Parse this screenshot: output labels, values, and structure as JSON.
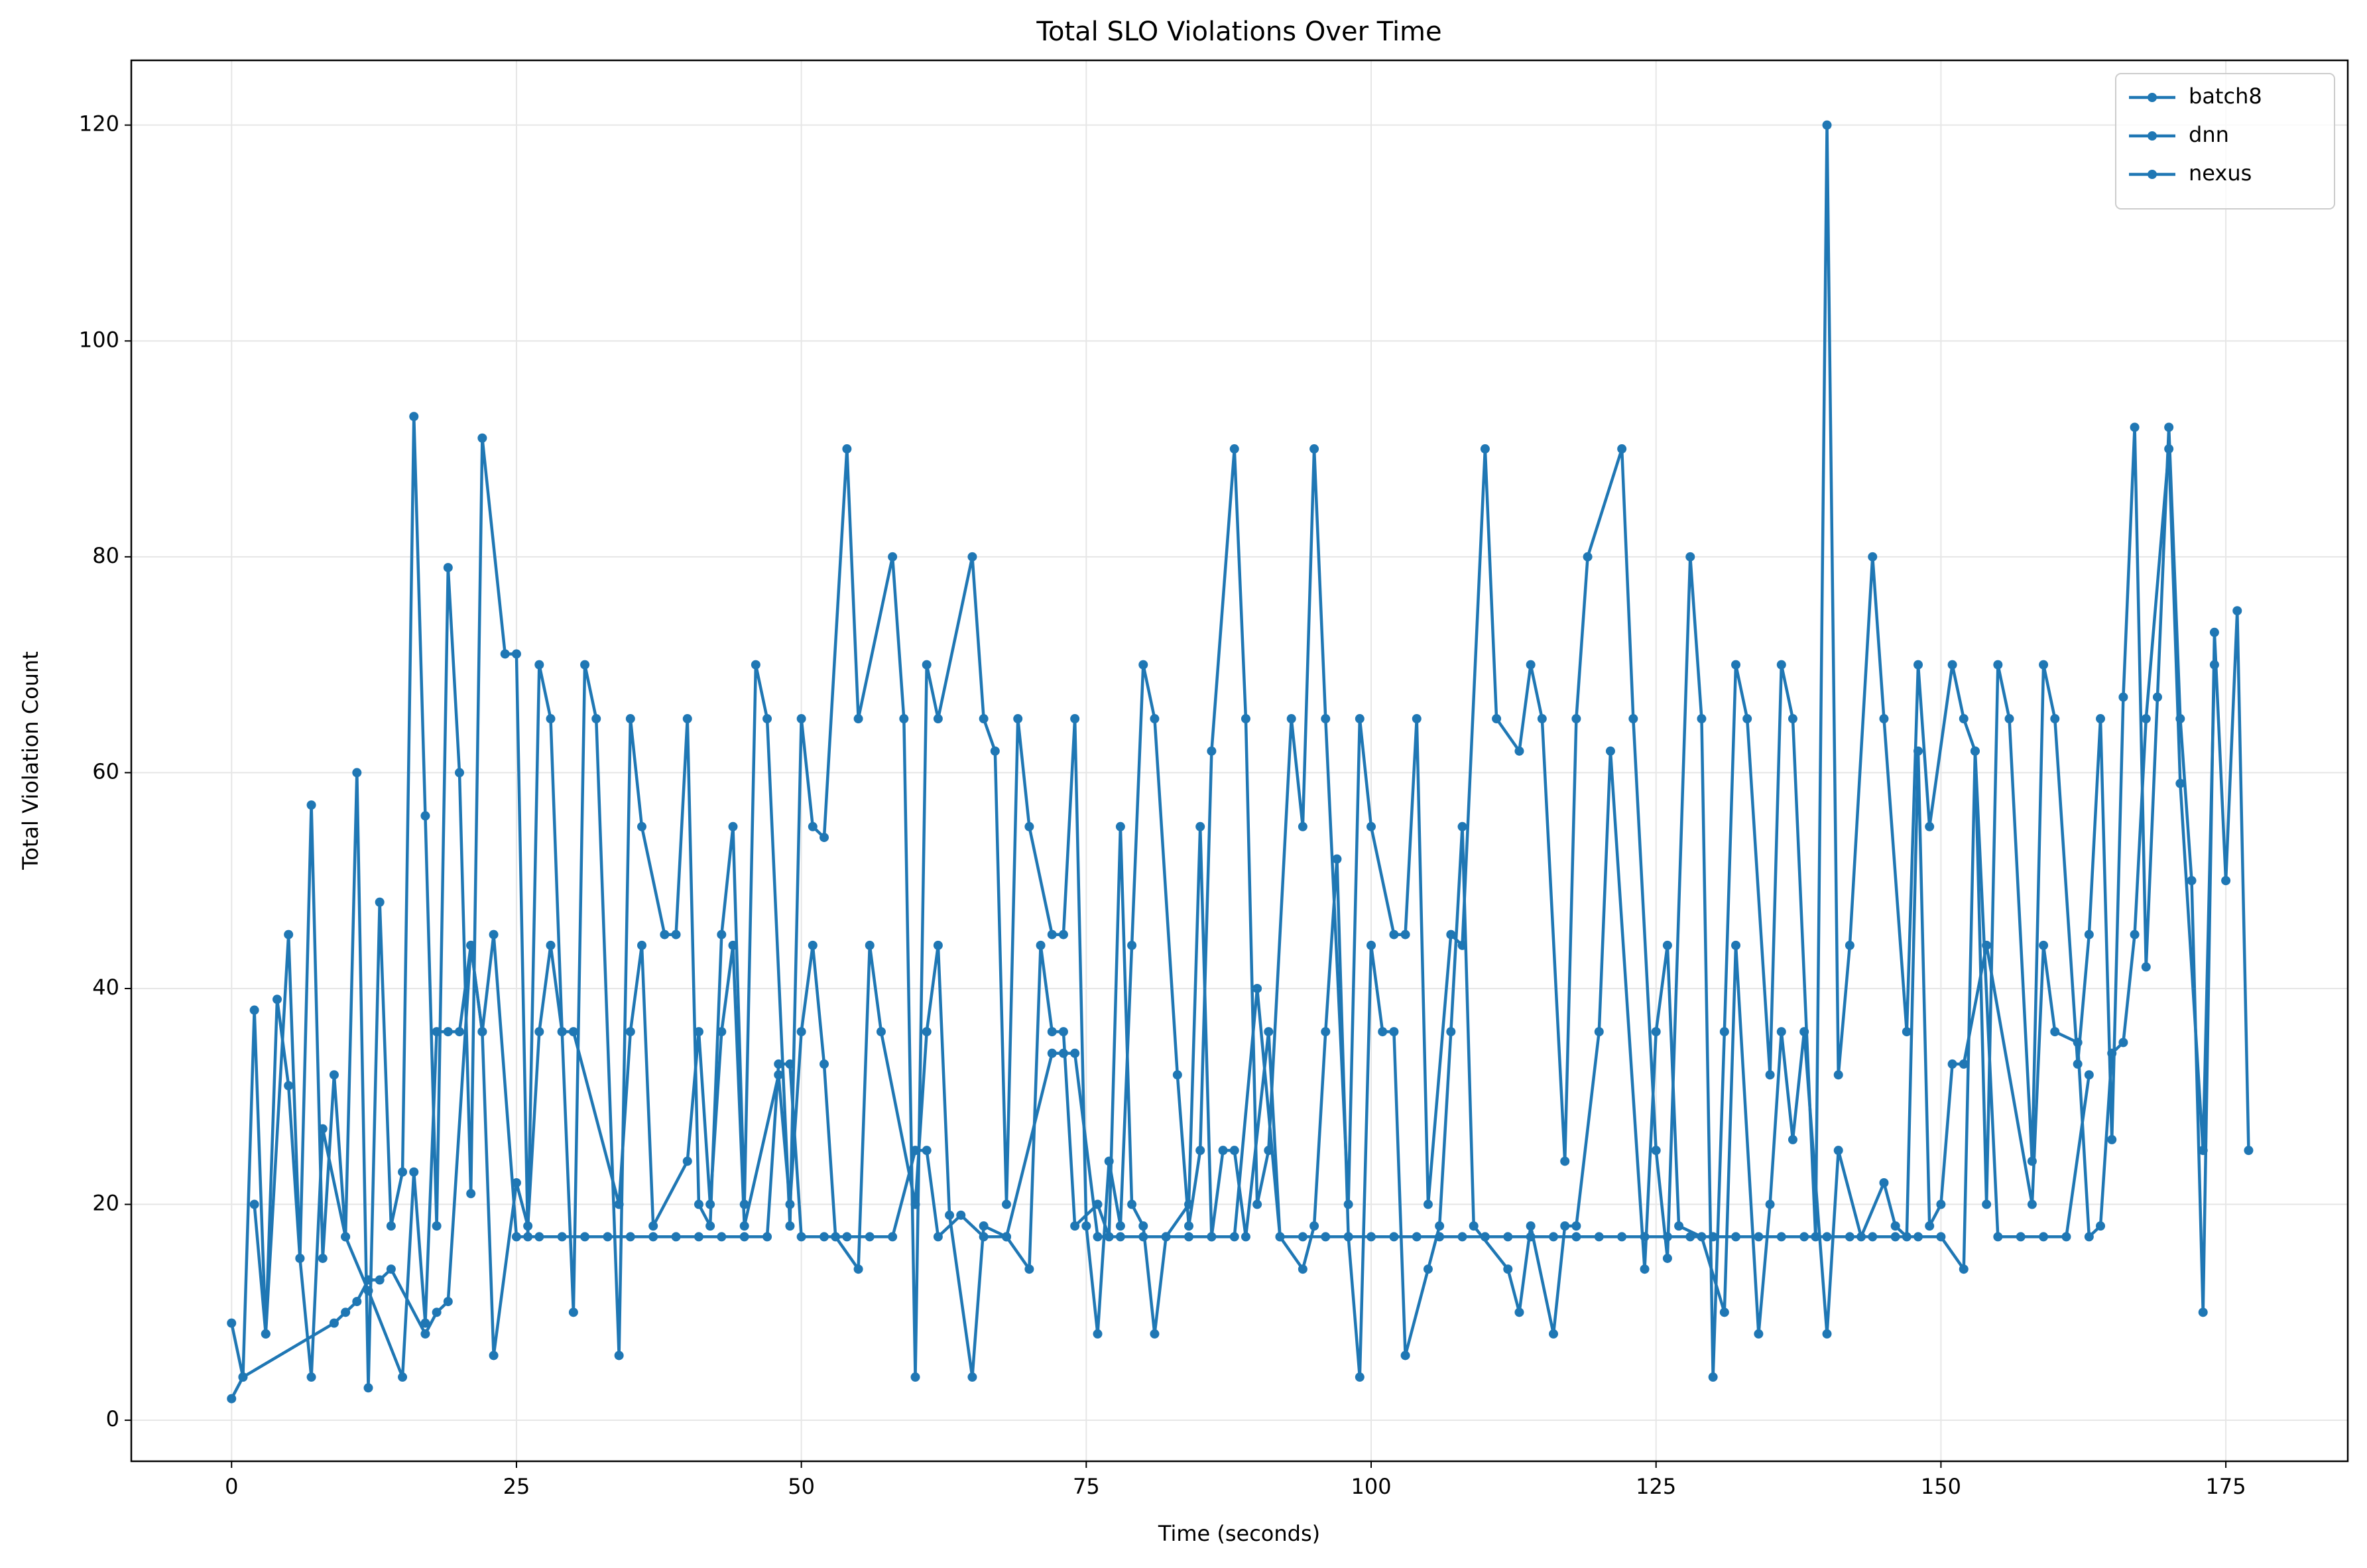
{
  "chart_data": {
    "type": "line",
    "title": "Total SLO Violations Over Time",
    "x_label": "Time (seconds)",
    "y_label": "Total Violation Count",
    "xlim": [
      -8.8,
      185.7
    ],
    "ylim": [
      -3.8,
      126
    ],
    "xticks": [
      0,
      25,
      50,
      75,
      100,
      125,
      150,
      175
    ],
    "yticks": [
      0,
      20,
      40,
      60,
      80,
      100,
      120
    ],
    "grid": true,
    "legend": "upper right",
    "series": [
      {
        "name": "batch8",
        "color": "#1f77b4",
        "x": [
          0,
          1,
          2,
          3,
          4,
          5,
          6,
          7,
          8,
          9,
          10,
          11,
          12,
          13,
          14,
          15,
          16,
          17,
          18,
          19,
          20,
          21,
          22,
          24,
          25,
          26,
          27,
          28,
          29,
          30,
          31,
          32,
          34,
          35,
          36,
          38,
          39,
          40,
          41,
          42,
          43,
          44,
          45,
          46,
          47,
          49,
          50,
          51,
          52,
          54,
          55,
          58,
          59,
          60,
          61,
          62,
          65,
          66,
          67,
          68,
          69,
          70,
          72,
          73,
          74,
          75,
          76,
          77,
          78,
          79,
          80,
          81,
          83,
          84,
          85,
          86,
          88,
          89,
          90,
          91,
          93,
          94,
          95,
          96,
          98,
          99,
          100,
          102,
          103,
          104,
          105,
          107,
          108,
          110,
          111,
          113,
          114,
          115,
          117,
          118,
          119,
          122,
          123,
          125,
          126,
          128,
          129,
          130,
          131,
          132,
          133,
          135,
          136,
          137,
          139,
          140,
          141,
          142,
          144,
          145,
          147,
          148,
          149,
          151,
          152,
          153,
          154,
          155,
          156,
          158,
          159,
          160,
          162,
          163,
          164,
          165,
          166,
          167,
          168,
          169,
          170,
          171,
          172,
          173,
          174,
          175,
          176,
          177
        ],
        "values": [
          9,
          4,
          38,
          8,
          39,
          31,
          15,
          57,
          15,
          32,
          17,
          60,
          3,
          48,
          18,
          23,
          93,
          56,
          18,
          79,
          60,
          21,
          91,
          71,
          71,
          17,
          70,
          65,
          36,
          10,
          70,
          65,
          6,
          65,
          55,
          45,
          45,
          65,
          20,
          18,
          45,
          55,
          20,
          70,
          65,
          18,
          65,
          55,
          54,
          90,
          65,
          80,
          65,
          4,
          70,
          65,
          80,
          65,
          62,
          20,
          65,
          55,
          45,
          45,
          65,
          18,
          8,
          24,
          18,
          44,
          70,
          65,
          32,
          18,
          25,
          62,
          90,
          65,
          20,
          25,
          65,
          55,
          90,
          65,
          20,
          65,
          55,
          45,
          45,
          65,
          20,
          45,
          44,
          90,
          65,
          62,
          70,
          65,
          24,
          65,
          80,
          90,
          65,
          25,
          15,
          80,
          65,
          4,
          36,
          70,
          65,
          32,
          70,
          65,
          17,
          120,
          32,
          44,
          80,
          65,
          36,
          70,
          55,
          70,
          65,
          62,
          20,
          70,
          65,
          24,
          70,
          65,
          33,
          45,
          65,
          26,
          67,
          92,
          42,
          67,
          92,
          65,
          50,
          10,
          73,
          50,
          75,
          25
        ]
      },
      {
        "name": "dnn",
        "color": "#1f77b4",
        "x": [
          0,
          1,
          9,
          10,
          11,
          12,
          13,
          14,
          17,
          18,
          19,
          21,
          22,
          23,
          25,
          27,
          29,
          31,
          33,
          35,
          37,
          39,
          41,
          43,
          45,
          47,
          48,
          49,
          50,
          52,
          54,
          56,
          58,
          60,
          61,
          62,
          64,
          66,
          68,
          72,
          73,
          74,
          76,
          78,
          80,
          82,
          84,
          86,
          88,
          90,
          92,
          94,
          96,
          98,
          100,
          102,
          104,
          106,
          108,
          110,
          112,
          114,
          116,
          118,
          120,
          122,
          124,
          126,
          128,
          130,
          132,
          134,
          136,
          138,
          140,
          142,
          144,
          146,
          148,
          150,
          152,
          153,
          155,
          157,
          159,
          161,
          163
        ],
        "values": [
          2,
          4,
          9,
          10,
          11,
          13,
          13,
          14,
          8,
          10,
          11,
          44,
          36,
          45,
          17,
          17,
          17,
          17,
          17,
          17,
          17,
          17,
          17,
          17,
          17,
          17,
          33,
          33,
          17,
          17,
          17,
          17,
          17,
          25,
          25,
          17,
          19,
          17,
          17,
          34,
          34,
          34,
          17,
          17,
          17,
          17,
          17,
          17,
          17,
          40,
          17,
          17,
          17,
          17,
          17,
          17,
          17,
          17,
          17,
          17,
          17,
          17,
          17,
          17,
          17,
          17,
          17,
          17,
          17,
          17,
          17,
          17,
          17,
          17,
          17,
          17,
          17,
          17,
          17,
          17,
          14,
          62,
          17,
          17,
          17,
          17,
          32
        ]
      },
      {
        "name": "nexus",
        "color": "#1f77b4",
        "x": [
          2,
          3,
          5,
          6,
          7,
          8,
          10,
          12,
          15,
          16,
          17,
          18,
          19,
          20,
          21,
          22,
          23,
          25,
          26,
          27,
          28,
          29,
          30,
          34,
          35,
          36,
          37,
          40,
          41,
          42,
          43,
          44,
          45,
          48,
          49,
          50,
          51,
          52,
          53,
          55,
          56,
          57,
          60,
          61,
          62,
          63,
          65,
          66,
          68,
          70,
          71,
          72,
          73,
          74,
          76,
          77,
          78,
          79,
          80,
          81,
          82,
          84,
          85,
          86,
          87,
          88,
          89,
          91,
          92,
          94,
          95,
          96,
          97,
          98,
          99,
          100,
          101,
          102,
          103,
          105,
          106,
          107,
          108,
          109,
          112,
          113,
          114,
          116,
          117,
          118,
          120,
          121,
          124,
          125,
          126,
          127,
          129,
          131,
          132,
          134,
          135,
          136,
          137,
          138,
          140,
          141,
          143,
          145,
          146,
          147,
          148,
          149,
          150,
          151,
          152,
          154,
          158,
          159,
          160,
          162,
          163,
          164,
          165,
          166,
          167,
          168,
          170,
          171,
          173,
          174
        ],
        "values": [
          20,
          8,
          45,
          15,
          4,
          27,
          17,
          12,
          4,
          23,
          9,
          36,
          36,
          36,
          44,
          36,
          6,
          22,
          18,
          36,
          44,
          36,
          36,
          20,
          36,
          44,
          18,
          24,
          36,
          20,
          36,
          44,
          18,
          32,
          20,
          36,
          44,
          33,
          17,
          14,
          44,
          36,
          20,
          36,
          44,
          19,
          4,
          18,
          17,
          14,
          44,
          36,
          36,
          18,
          20,
          17,
          55,
          20,
          18,
          8,
          17,
          20,
          55,
          17,
          25,
          25,
          17,
          36,
          17,
          14,
          18,
          36,
          52,
          17,
          4,
          44,
          36,
          36,
          6,
          14,
          18,
          36,
          55,
          18,
          14,
          10,
          18,
          8,
          18,
          18,
          36,
          62,
          14,
          36,
          44,
          18,
          17,
          10,
          44,
          8,
          20,
          36,
          26,
          36,
          8,
          25,
          17,
          22,
          18,
          17,
          62,
          18,
          20,
          33,
          33,
          44,
          20,
          44,
          36,
          35,
          17,
          18,
          34,
          35,
          45,
          65,
          90,
          59,
          25,
          70
        ]
      }
    ]
  }
}
